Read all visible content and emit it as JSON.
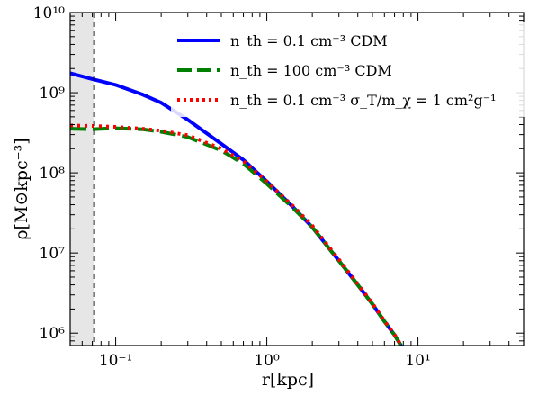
{
  "chart_data": {
    "type": "line",
    "xlabel": "r[kpc]",
    "ylabel": "ρ[M⊙kpc⁻³]",
    "xscale": "log",
    "yscale": "log",
    "xlim": [
      0.05,
      50
    ],
    "ylim": [
      700000,
      10000000000
    ],
    "x_tick_labels": [
      "10⁻¹",
      "10⁰",
      "10¹"
    ],
    "y_tick_labels": [
      "10⁶",
      "10⁷",
      "10⁸",
      "10⁹",
      "10¹⁰"
    ],
    "grid": false,
    "legend_position": "top-right",
    "shaded_region": {
      "x_from": 0.05,
      "x_to": 0.072,
      "color": "#e6e6e6"
    },
    "vertical_line": {
      "x": 0.072,
      "style": "dashed",
      "color": "#000000"
    },
    "series": [
      {
        "name": "n_th = 0.1 cm⁻³ CDM",
        "color": "#0000ff",
        "style": "solid",
        "x": [
          0.05,
          0.07,
          0.1,
          0.15,
          0.2,
          0.3,
          0.5,
          0.7,
          1.0,
          1.5,
          2.0,
          3.0,
          4.0,
          5.0,
          6.0,
          7.0,
          7.8
        ],
        "y": [
          1750000000,
          1480000000,
          1250000000,
          950000000,
          750000000,
          460000000,
          230000000,
          145000000,
          78000000,
          37000000,
          21000000,
          8000000,
          4000000,
          2300000,
          1400000,
          950000,
          680000
        ]
      },
      {
        "name": "n_th = 100 cm⁻³ CDM",
        "color": "#008000",
        "style": "dashed",
        "x": [
          0.05,
          0.07,
          0.1,
          0.15,
          0.2,
          0.3,
          0.5,
          0.7,
          1.0,
          1.5,
          2.0,
          3.0,
          4.0,
          5.0,
          6.0,
          7.0,
          7.8
        ],
        "y": [
          355000000,
          350000000,
          360000000,
          350000000,
          325000000,
          280000000,
          190000000,
          130000000,
          73000000,
          36000000,
          21000000,
          8000000,
          4000000,
          2300000,
          1400000,
          950000,
          680000
        ]
      },
      {
        "name": "n_th = 0.1 cm⁻³ σ_T/m_χ = 1 cm²g⁻¹",
        "color": "#ff0000",
        "style": "dotted",
        "x": [
          0.05,
          0.07,
          0.1,
          0.15,
          0.2,
          0.3,
          0.5,
          0.7,
          1.0,
          1.5,
          2.0,
          3.0,
          4.0,
          5.0,
          6.0,
          7.0,
          7.8
        ],
        "y": [
          390000000,
          385000000,
          375000000,
          355000000,
          335000000,
          295000000,
          200000000,
          140000000,
          78000000,
          38000000,
          22000000,
          8300000,
          4100000,
          2350000,
          1420000,
          960000,
          690000
        ]
      }
    ]
  }
}
